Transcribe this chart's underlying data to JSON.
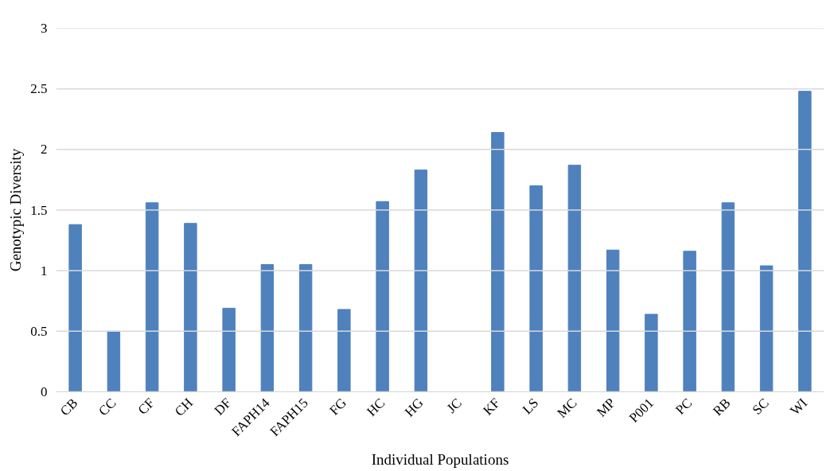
{
  "chart_data": {
    "type": "bar",
    "xlabel": "Individual Populations",
    "ylabel": "Genotypic Diversity",
    "categories": [
      "CB",
      "CC",
      "CF",
      "CH",
      "DF",
      "FAPH14",
      "FAPH15",
      "FG",
      "HC",
      "HG",
      "JC",
      "KF",
      "LS",
      "MC",
      "MP",
      "P001",
      "PC",
      "RB",
      "SC",
      "WI"
    ],
    "values": [
      1.38,
      0.5,
      1.56,
      1.39,
      0.69,
      1.05,
      1.05,
      0.68,
      1.57,
      1.83,
      0,
      2.14,
      1.7,
      1.87,
      1.17,
      0.64,
      1.16,
      1.56,
      1.04,
      2.48
    ],
    "color": "#4f81bd",
    "ylim": [
      0,
      3
    ],
    "yticks": [
      0,
      0.5,
      1,
      1.5,
      2,
      2.5,
      3
    ],
    "grid": "y"
  }
}
